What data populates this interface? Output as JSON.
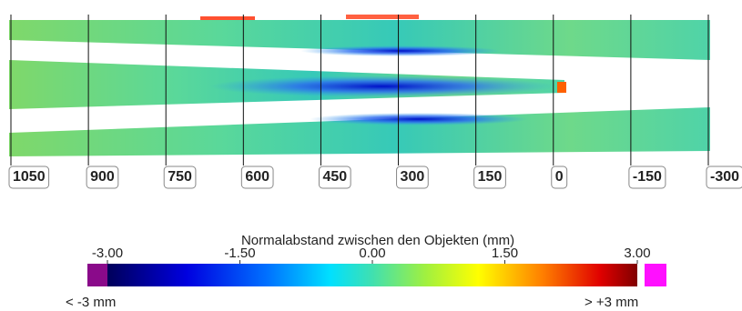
{
  "position_scale": {
    "ticks": [
      1050,
      900,
      750,
      600,
      450,
      300,
      150,
      0,
      -150,
      -300
    ]
  },
  "color_legend": {
    "title": "Normalabstand zwischen den Objekten (mm)",
    "ticks": [
      {
        "value": -3,
        "label": "-3.00"
      },
      {
        "value": -1.5,
        "label": "-1.50"
      },
      {
        "value": 0,
        "label": "0.00"
      },
      {
        "value": 1.5,
        "label": "1.50"
      },
      {
        "value": 3,
        "label": "3.00"
      }
    ],
    "below_label": "< -3 mm",
    "above_label": "> +3 mm"
  }
}
